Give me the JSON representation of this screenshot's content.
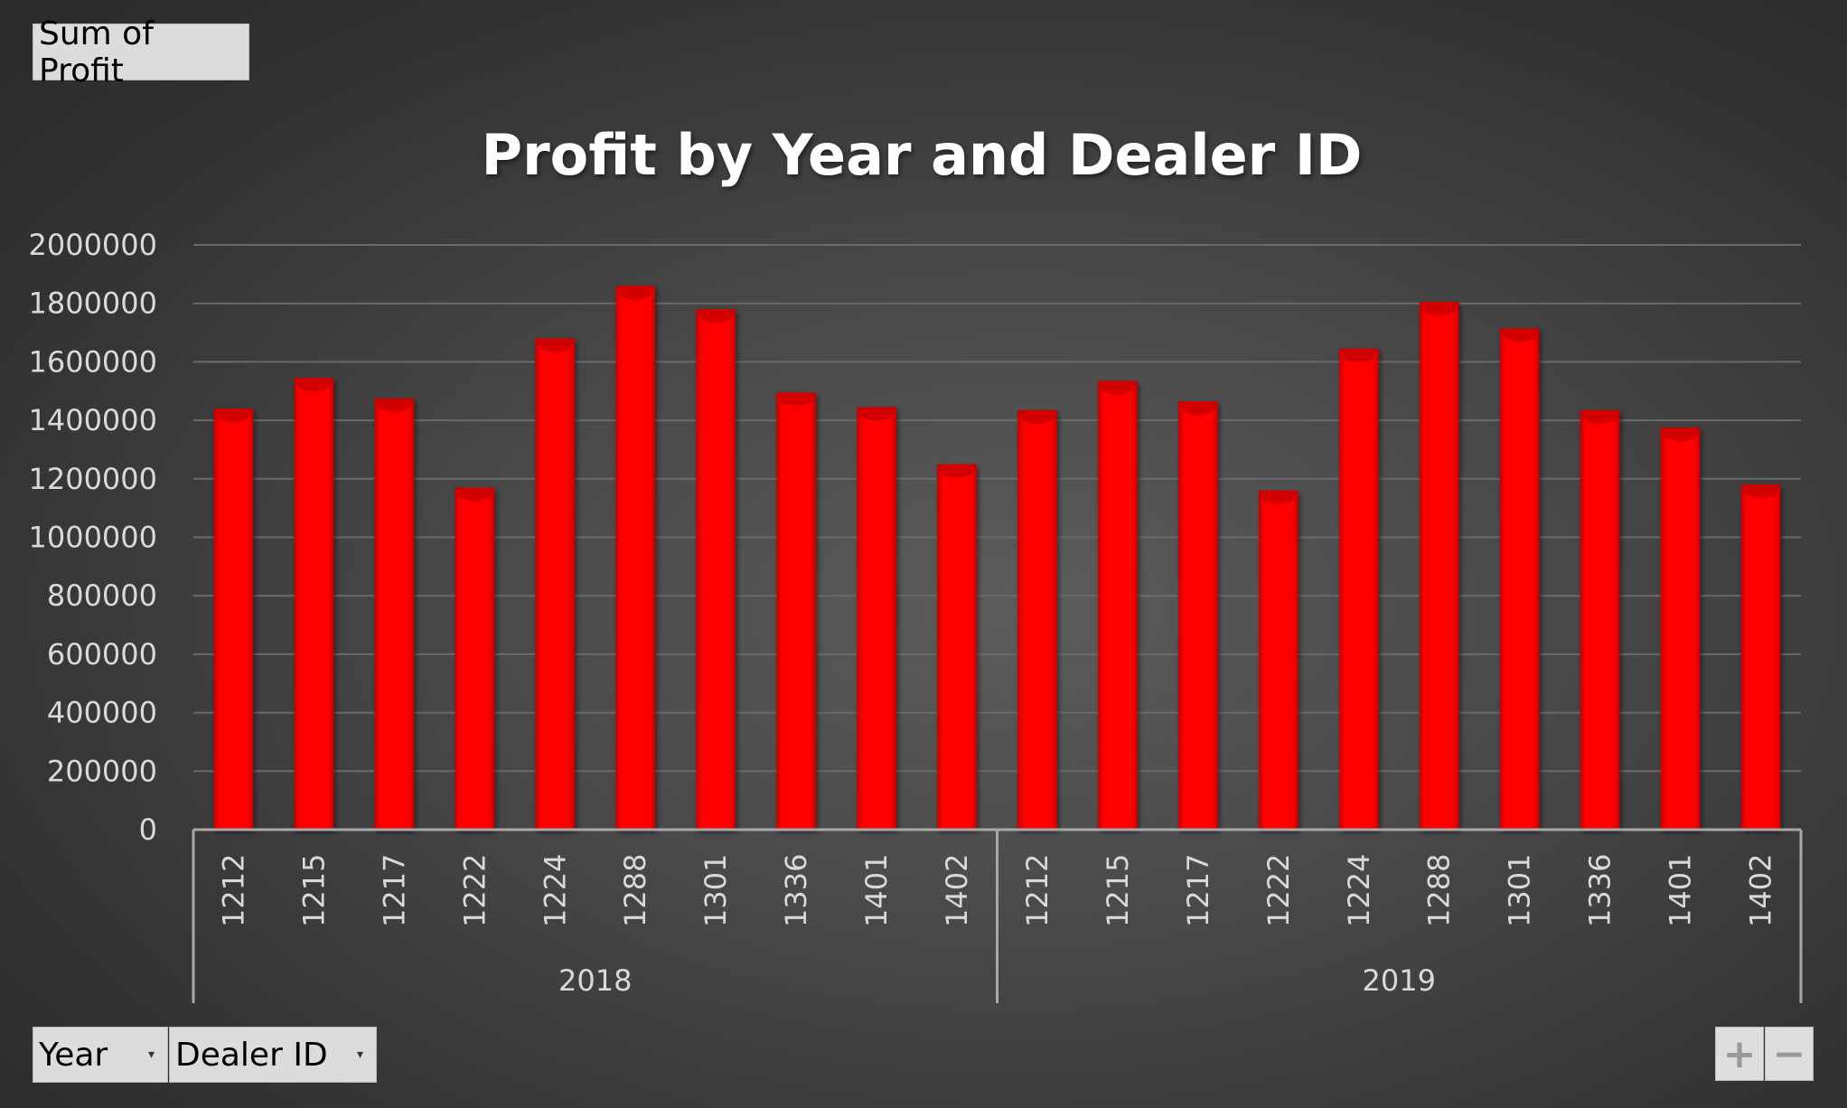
{
  "pivot_buttons": {
    "value_field": "Sum of Profit",
    "row_fields": [
      {
        "label": "Year",
        "dropdown_icon": "dropdown-arrow-icon"
      },
      {
        "label": "Dealer ID",
        "dropdown_icon": "dropdown-arrow-icon"
      }
    ],
    "expand_label": "+",
    "collapse_label": "−"
  },
  "colors": {
    "bar": "#ff0000",
    "bar_dark": "#b80000",
    "gridline": "#6a6a6a",
    "axis": "#a8a8a8"
  },
  "chart_data": {
    "type": "bar",
    "title": "Profit by Year and Dealer ID",
    "xlabel": "",
    "ylabel": "",
    "ylim": [
      0,
      2000000
    ],
    "yticks": [
      "0",
      "200000",
      "400000",
      "600000",
      "800000",
      "1000000",
      "1200000",
      "1400000",
      "1600000",
      "1800000",
      "2000000"
    ],
    "grid": true,
    "legend": "none",
    "groups": [
      {
        "name": "2018",
        "categories": [
          "1212",
          "1215",
          "1217",
          "1222",
          "1224",
          "1288",
          "1301",
          "1336",
          "1401",
          "1402"
        ],
        "values": [
          1440000,
          1545000,
          1475000,
          1170000,
          1680000,
          1860000,
          1780000,
          1495000,
          1445000,
          1250000
        ]
      },
      {
        "name": "2019",
        "categories": [
          "1212",
          "1215",
          "1217",
          "1222",
          "1224",
          "1288",
          "1301",
          "1336",
          "1401",
          "1402"
        ],
        "values": [
          1435000,
          1535000,
          1465000,
          1160000,
          1645000,
          1805000,
          1715000,
          1435000,
          1375000,
          1180000
        ]
      }
    ]
  }
}
